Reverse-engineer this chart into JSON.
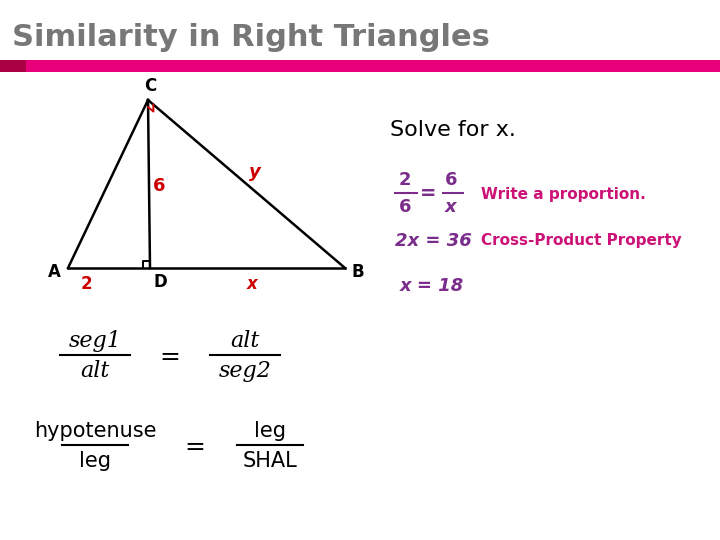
{
  "title": "Similarity in Right Triangles",
  "title_color": "#777777",
  "title_fontsize": 22,
  "bg_color": "#ffffff",
  "bar_color": "#e8007a",
  "bar_left_color": "#aa0044",
  "purple": "#7b2d8b",
  "magenta": "#cc1177",
  "triangle_color": "#000000",
  "red_label_color": "#cc0000",
  "label_A": "A",
  "label_B": "B",
  "label_C": "C",
  "label_D": "D",
  "label_6": "6",
  "label_2": "2",
  "label_x": "x",
  "label_y": "y",
  "solve_text": "Solve for x.",
  "proportion_label": "Write a proportion.",
  "cross_product_label": "Cross-Product Property",
  "cross_product_eq": "2x = 36",
  "x_answer": "x = 18"
}
